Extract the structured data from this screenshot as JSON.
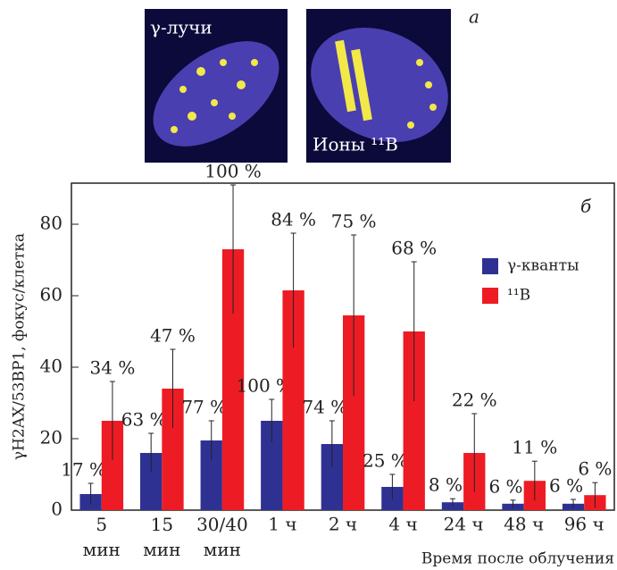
{
  "images": [
    {
      "label": "γ-лучи"
    },
    {
      "label": "Ионы ¹¹B"
    }
  ],
  "panel_a": "а",
  "chart_data": {
    "type": "bar",
    "panel_label": "б",
    "y_label": "γH2AX/53BP1, фокус/клетка",
    "x_label": "Время после облучения",
    "categories": [
      "5 мин",
      "15 мин",
      "30/40 мин",
      "1 ч",
      "2 ч",
      "4 ч",
      "24 ч",
      "48 ч",
      "96 ч"
    ],
    "series": [
      {
        "name": "γ-кванты",
        "color": "#2e3192",
        "values": [
          4.5,
          16,
          19.5,
          25,
          18.5,
          6.5,
          2.2,
          1.8,
          1.8
        ],
        "errors": [
          3,
          5.5,
          5.5,
          6,
          6.5,
          3.5,
          1,
          1,
          1.2
        ],
        "value_labels_text": [
          "17 %",
          "63 %",
          "77 %",
          "100 %",
          "74 %",
          "25 %",
          "8 %",
          "6 %",
          "6 %"
        ]
      },
      {
        "name": "¹¹B",
        "color": "#ed1c24",
        "values": [
          25,
          34,
          73,
          61.5,
          54.5,
          50,
          16,
          8.2,
          4.2
        ],
        "errors": [
          11,
          11,
          18,
          16,
          22.5,
          19.5,
          11,
          5.5,
          3.5
        ],
        "value_labels_text": [
          "34 %",
          "47 %",
          "100 %",
          "84 %",
          "75 %",
          "68 %",
          "22 %",
          "11 %",
          "6 %"
        ]
      }
    ],
    "ylim": [
      0,
      91.5
    ],
    "yticks": [
      0,
      20,
      40,
      60,
      80
    ]
  }
}
